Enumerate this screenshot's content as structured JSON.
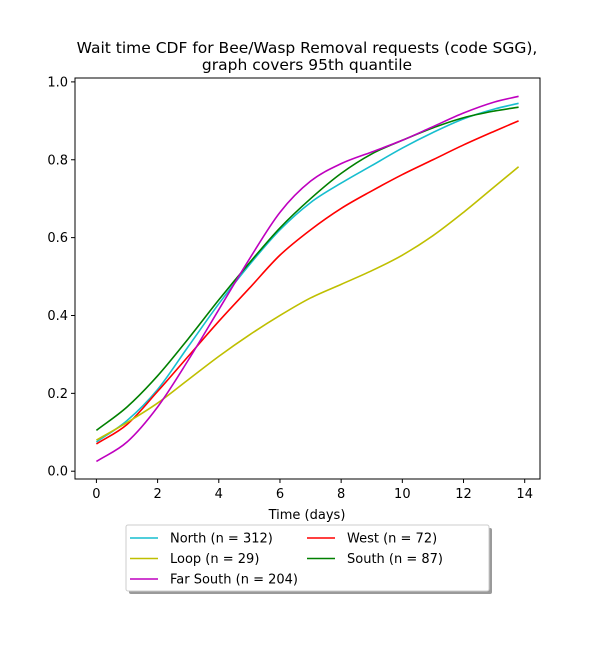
{
  "chart_data": {
    "type": "line",
    "title": "Wait time CDF for Bee/Wasp Removal  requests (code SGG),",
    "subtitle": "graph covers 95th quantile",
    "xlabel": "Time (days)",
    "ylabel": "",
    "xlim": [
      -0.7,
      14.5
    ],
    "ylim": [
      -0.02,
      1.01
    ],
    "xticks": [
      0,
      2,
      4,
      6,
      8,
      10,
      12,
      14
    ],
    "yticks": [
      0.0,
      0.2,
      0.4,
      0.6,
      0.8,
      1.0
    ],
    "xtick_labels": [
      "0",
      "2",
      "4",
      "6",
      "8",
      "10",
      "12",
      "14"
    ],
    "ytick_labels": [
      "0.0",
      "0.2",
      "0.4",
      "0.6",
      "0.8",
      "1.0"
    ],
    "grid": false,
    "legend_placement": "below-center",
    "x": [
      0,
      1,
      2,
      3,
      4,
      5,
      6,
      7,
      8,
      9,
      10,
      11,
      12,
      13,
      13.8
    ],
    "series": [
      {
        "name": "North (n = 312)",
        "color": "#17becf",
        "values": [
          0.075,
          0.13,
          0.21,
          0.32,
          0.43,
          0.53,
          0.62,
          0.69,
          0.74,
          0.785,
          0.83,
          0.87,
          0.905,
          0.93,
          0.945
        ]
      },
      {
        "name": "West (n = 72)",
        "color": "#ff0000",
        "values": [
          0.07,
          0.12,
          0.205,
          0.295,
          0.385,
          0.47,
          0.555,
          0.62,
          0.675,
          0.72,
          0.762,
          0.8,
          0.838,
          0.873,
          0.9
        ]
      },
      {
        "name": "Loop (n = 29)",
        "color": "#bfbf00",
        "values": [
          0.08,
          0.125,
          0.175,
          0.235,
          0.295,
          0.35,
          0.4,
          0.445,
          0.48,
          0.515,
          0.555,
          0.605,
          0.665,
          0.73,
          0.782
        ]
      },
      {
        "name": "South (n = 87)",
        "color": "#008000",
        "values": [
          0.105,
          0.165,
          0.245,
          0.34,
          0.44,
          0.535,
          0.625,
          0.7,
          0.765,
          0.815,
          0.85,
          0.882,
          0.908,
          0.925,
          0.935
        ]
      },
      {
        "name": "Far South (n = 204)",
        "color": "#bf00bf",
        "values": [
          0.025,
          0.075,
          0.165,
          0.285,
          0.415,
          0.545,
          0.665,
          0.745,
          0.79,
          0.82,
          0.85,
          0.885,
          0.92,
          0.948,
          0.963
        ]
      }
    ]
  }
}
